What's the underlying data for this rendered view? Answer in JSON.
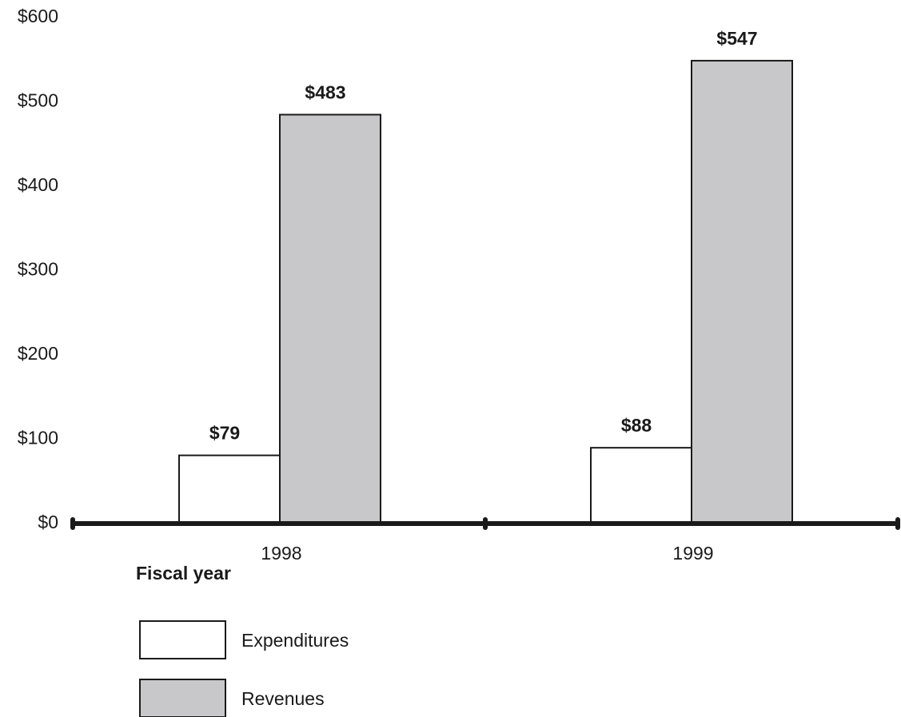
{
  "chart_data": {
    "type": "bar",
    "categories": [
      "1998",
      "1999"
    ],
    "series": [
      {
        "name": "Expenditures",
        "values": [
          79,
          88
        ],
        "color": "#ffffff",
        "labels": [
          "$79",
          "$88"
        ]
      },
      {
        "name": "Revenues",
        "values": [
          483,
          547
        ],
        "color": "#c8c8ca",
        "labels": [
          "$483",
          "$547"
        ]
      }
    ],
    "xlabel": "Fiscal year",
    "ylabel": "",
    "ylim": [
      0,
      600
    ],
    "yticks": [
      0,
      100,
      200,
      300,
      400,
      500,
      600
    ],
    "ytick_labels": [
      "$0",
      "$100",
      "$200",
      "$300",
      "$400",
      "$500",
      "$600"
    ],
    "grid": false,
    "legend_position": "bottom-left"
  }
}
